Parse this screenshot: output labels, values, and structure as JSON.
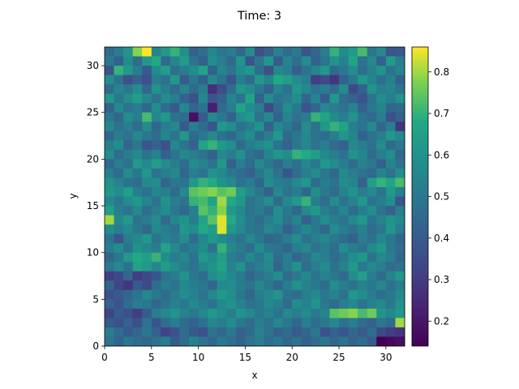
{
  "chart_data": {
    "type": "heatmap",
    "title": "Time: 3",
    "xlabel": "x",
    "ylabel": "y",
    "xlim": [
      0,
      32
    ],
    "ylim": [
      0,
      32
    ],
    "x_ticks": [
      "0",
      "5",
      "10",
      "15",
      "20",
      "25",
      "30"
    ],
    "y_ticks": [
      "0",
      "5",
      "10",
      "15",
      "20",
      "25",
      "30"
    ],
    "colormap": "viridis",
    "colorbar": {
      "min": 0.14,
      "max": 0.86,
      "ticks": [
        "0.2",
        "0.3",
        "0.4",
        "0.5",
        "0.6",
        "0.7",
        "0.8"
      ]
    },
    "grid": false,
    "legend": "none",
    "grid_size": [
      32,
      32
    ],
    "grid_note": "values row-major from y=31 (top) down to y=0, each row x=0..31",
    "values": [
      [
        0.45,
        0.52,
        0.61,
        0.78,
        0.86,
        0.55,
        0.62,
        0.7,
        0.58,
        0.42,
        0.47,
        0.55,
        0.49,
        0.52,
        0.44,
        0.58,
        0.36,
        0.42,
        0.53,
        0.46,
        0.5,
        0.38,
        0.44,
        0.52,
        0.7,
        0.58,
        0.63,
        0.72,
        0.49,
        0.56,
        0.38,
        0.4
      ],
      [
        0.5,
        0.42,
        0.58,
        0.46,
        0.62,
        0.68,
        0.45,
        0.55,
        0.63,
        0.49,
        0.42,
        0.58,
        0.52,
        0.45,
        0.61,
        0.38,
        0.5,
        0.62,
        0.4,
        0.55,
        0.47,
        0.58,
        0.42,
        0.49,
        0.6,
        0.53,
        0.66,
        0.48,
        0.56,
        0.42,
        0.63,
        0.52
      ],
      [
        0.38,
        0.7,
        0.62,
        0.52,
        0.4,
        0.58,
        0.64,
        0.47,
        0.52,
        0.58,
        0.66,
        0.42,
        0.55,
        0.49,
        0.58,
        0.62,
        0.47,
        0.36,
        0.56,
        0.52,
        0.41,
        0.48,
        0.55,
        0.62,
        0.45,
        0.5,
        0.58,
        0.46,
        0.53,
        0.6,
        0.48,
        0.55
      ],
      [
        0.58,
        0.48,
        0.36,
        0.42,
        0.36,
        0.52,
        0.48,
        0.62,
        0.4,
        0.5,
        0.42,
        0.56,
        0.48,
        0.38,
        0.52,
        0.45,
        0.62,
        0.55,
        0.68,
        0.64,
        0.58,
        0.52,
        0.3,
        0.34,
        0.28,
        0.42,
        0.5,
        0.62,
        0.55,
        0.47,
        0.53,
        0.42
      ],
      [
        0.46,
        0.55,
        0.5,
        0.58,
        0.44,
        0.6,
        0.52,
        0.45,
        0.55,
        0.45,
        0.52,
        0.26,
        0.35,
        0.46,
        0.62,
        0.58,
        0.5,
        0.42,
        0.55,
        0.48,
        0.62,
        0.56,
        0.48,
        0.52,
        0.46,
        0.58,
        0.34,
        0.42,
        0.6,
        0.52,
        0.55,
        0.48
      ],
      [
        0.62,
        0.5,
        0.58,
        0.64,
        0.56,
        0.48,
        0.58,
        0.52,
        0.42,
        0.36,
        0.56,
        0.38,
        0.42,
        0.55,
        0.48,
        0.66,
        0.42,
        0.58,
        0.48,
        0.52,
        0.58,
        0.44,
        0.55,
        0.4,
        0.62,
        0.46,
        0.42,
        0.38,
        0.48,
        0.58,
        0.52,
        0.6
      ],
      [
        0.42,
        0.56,
        0.48,
        0.52,
        0.44,
        0.58,
        0.46,
        0.4,
        0.56,
        0.44,
        0.48,
        0.22,
        0.45,
        0.52,
        0.66,
        0.58,
        0.52,
        0.34,
        0.46,
        0.58,
        0.5,
        0.38,
        0.44,
        0.56,
        0.52,
        0.48,
        0.55,
        0.42,
        0.5,
        0.55,
        0.44,
        0.45
      ],
      [
        0.5,
        0.44,
        0.58,
        0.52,
        0.72,
        0.55,
        0.62,
        0.48,
        0.46,
        0.18,
        0.4,
        0.56,
        0.5,
        0.42,
        0.58,
        0.62,
        0.48,
        0.56,
        0.42,
        0.55,
        0.48,
        0.52,
        0.7,
        0.66,
        0.58,
        0.52,
        0.6,
        0.48,
        0.45,
        0.52,
        0.36,
        0.42
      ],
      [
        0.56,
        0.48,
        0.52,
        0.46,
        0.58,
        0.44,
        0.52,
        0.56,
        0.4,
        0.52,
        0.46,
        0.38,
        0.62,
        0.58,
        0.48,
        0.52,
        0.6,
        0.42,
        0.56,
        0.5,
        0.44,
        0.58,
        0.48,
        0.62,
        0.7,
        0.66,
        0.52,
        0.48,
        0.56,
        0.44,
        0.52,
        0.28
      ],
      [
        0.44,
        0.52,
        0.48,
        0.56,
        0.5,
        0.46,
        0.55,
        0.48,
        0.62,
        0.45,
        0.5,
        0.56,
        0.48,
        0.44,
        0.52,
        0.58,
        0.46,
        0.52,
        0.62,
        0.45,
        0.5,
        0.56,
        0.48,
        0.46,
        0.52,
        0.6,
        0.55,
        0.42,
        0.48,
        0.52,
        0.62,
        0.56
      ],
      [
        0.52,
        0.58,
        0.44,
        0.5,
        0.38,
        0.42,
        0.36,
        0.56,
        0.48,
        0.42,
        0.66,
        0.7,
        0.62,
        0.58,
        0.45,
        0.52,
        0.56,
        0.6,
        0.48,
        0.42,
        0.5,
        0.56,
        0.48,
        0.52,
        0.45,
        0.42,
        0.56,
        0.52,
        0.48,
        0.58,
        0.45,
        0.5
      ],
      [
        0.58,
        0.46,
        0.52,
        0.56,
        0.48,
        0.54,
        0.42,
        0.48,
        0.56,
        0.52,
        0.48,
        0.42,
        0.56,
        0.52,
        0.6,
        0.48,
        0.44,
        0.55,
        0.62,
        0.58,
        0.7,
        0.68,
        0.64,
        0.56,
        0.52,
        0.48,
        0.6,
        0.55,
        0.46,
        0.52,
        0.58,
        0.44
      ],
      [
        0.44,
        0.52,
        0.48,
        0.62,
        0.56,
        0.64,
        0.58,
        0.52,
        0.46,
        0.58,
        0.54,
        0.48,
        0.62,
        0.42,
        0.52,
        0.46,
        0.56,
        0.5,
        0.44,
        0.52,
        0.48,
        0.56,
        0.5,
        0.62,
        0.58,
        0.52,
        0.46,
        0.54,
        0.5,
        0.42,
        0.55,
        0.48
      ],
      [
        0.52,
        0.46,
        0.58,
        0.5,
        0.62,
        0.48,
        0.52,
        0.56,
        0.44,
        0.52,
        0.48,
        0.6,
        0.56,
        0.5,
        0.46,
        0.42,
        0.5,
        0.56,
        0.48,
        0.38,
        0.46,
        0.52,
        0.58,
        0.5,
        0.44,
        0.56,
        0.52,
        0.48,
        0.45,
        0.55,
        0.48,
        0.58
      ],
      [
        0.6,
        0.54,
        0.48,
        0.46,
        0.56,
        0.58,
        0.44,
        0.5,
        0.48,
        0.62,
        0.7,
        0.68,
        0.6,
        0.56,
        0.48,
        0.52,
        0.44,
        0.58,
        0.52,
        0.5,
        0.56,
        0.62,
        0.46,
        0.52,
        0.48,
        0.58,
        0.55,
        0.42,
        0.64,
        0.7,
        0.66,
        0.72
      ],
      [
        0.62,
        0.58,
        0.64,
        0.52,
        0.48,
        0.55,
        0.52,
        0.46,
        0.56,
        0.74,
        0.76,
        0.78,
        0.74,
        0.76,
        0.64,
        0.56,
        0.5,
        0.42,
        0.56,
        0.48,
        0.52,
        0.44,
        0.58,
        0.5,
        0.46,
        0.54,
        0.6,
        0.52,
        0.56,
        0.48,
        0.62,
        0.52
      ],
      [
        0.56,
        0.5,
        0.58,
        0.62,
        0.55,
        0.48,
        0.6,
        0.52,
        0.48,
        0.7,
        0.72,
        0.66,
        0.8,
        0.68,
        0.62,
        0.48,
        0.52,
        0.58,
        0.46,
        0.56,
        0.62,
        0.7,
        0.52,
        0.46,
        0.58,
        0.48,
        0.55,
        0.62,
        0.48,
        0.52,
        0.58,
        0.38
      ],
      [
        0.64,
        0.52,
        0.48,
        0.56,
        0.46,
        0.52,
        0.58,
        0.5,
        0.44,
        0.52,
        0.74,
        0.7,
        0.78,
        0.62,
        0.56,
        0.48,
        0.52,
        0.46,
        0.58,
        0.5,
        0.44,
        0.56,
        0.62,
        0.52,
        0.48,
        0.55,
        0.46,
        0.52,
        0.58,
        0.48,
        0.42,
        0.52
      ],
      [
        0.8,
        0.56,
        0.62,
        0.48,
        0.52,
        0.58,
        0.46,
        0.55,
        0.6,
        0.52,
        0.66,
        0.74,
        0.84,
        0.68,
        0.58,
        0.5,
        0.46,
        0.52,
        0.58,
        0.48,
        0.55,
        0.42,
        0.5,
        0.58,
        0.52,
        0.48,
        0.56,
        0.62,
        0.48,
        0.54,
        0.6,
        0.56
      ],
      [
        0.58,
        0.52,
        0.56,
        0.5,
        0.44,
        0.56,
        0.52,
        0.48,
        0.62,
        0.58,
        0.68,
        0.64,
        0.84,
        0.62,
        0.56,
        0.5,
        0.48,
        0.56,
        0.52,
        0.42,
        0.48,
        0.56,
        0.5,
        0.44,
        0.58,
        0.52,
        0.48,
        0.54,
        0.46,
        0.5,
        0.62,
        0.52
      ],
      [
        0.48,
        0.38,
        0.52,
        0.56,
        0.62,
        0.48,
        0.54,
        0.5,
        0.58,
        0.46,
        0.56,
        0.62,
        0.58,
        0.52,
        0.48,
        0.56,
        0.5,
        0.44,
        0.46,
        0.52,
        0.58,
        0.48,
        0.52,
        0.56,
        0.5,
        0.46,
        0.42,
        0.52,
        0.48,
        0.56,
        0.5,
        0.44
      ],
      [
        0.52,
        0.58,
        0.48,
        0.6,
        0.56,
        0.52,
        0.66,
        0.56,
        0.48,
        0.52,
        0.58,
        0.48,
        0.7,
        0.56,
        0.52,
        0.46,
        0.58,
        0.5,
        0.48,
        0.44,
        0.52,
        0.56,
        0.48,
        0.52,
        0.46,
        0.58,
        0.52,
        0.48,
        0.56,
        0.62,
        0.5,
        0.46
      ],
      [
        0.44,
        0.5,
        0.62,
        0.68,
        0.64,
        0.7,
        0.58,
        0.52,
        0.56,
        0.48,
        0.62,
        0.58,
        0.64,
        0.52,
        0.48,
        0.56,
        0.5,
        0.58,
        0.46,
        0.52,
        0.44,
        0.48,
        0.56,
        0.52,
        0.46,
        0.5,
        0.58,
        0.62,
        0.48,
        0.56,
        0.52,
        0.44
      ],
      [
        0.5,
        0.56,
        0.48,
        0.66,
        0.62,
        0.56,
        0.64,
        0.58,
        0.52,
        0.48,
        0.56,
        0.6,
        0.66,
        0.54,
        0.6,
        0.48,
        0.52,
        0.56,
        0.44,
        0.52,
        0.6,
        0.46,
        0.52,
        0.58,
        0.48,
        0.54,
        0.62,
        0.5,
        0.56,
        0.52,
        0.46,
        0.48
      ],
      [
        0.3,
        0.34,
        0.44,
        0.3,
        0.34,
        0.38,
        0.48,
        0.52,
        0.6,
        0.5,
        0.46,
        0.58,
        0.62,
        0.56,
        0.5,
        0.44,
        0.48,
        0.52,
        0.58,
        0.46,
        0.5,
        0.56,
        0.48,
        0.54,
        0.5,
        0.46,
        0.58,
        0.64,
        0.52,
        0.46,
        0.54,
        0.62
      ],
      [
        0.44,
        0.32,
        0.28,
        0.4,
        0.34,
        0.46,
        0.52,
        0.48,
        0.56,
        0.52,
        0.5,
        0.44,
        0.56,
        0.58,
        0.52,
        0.48,
        0.56,
        0.5,
        0.44,
        0.52,
        0.6,
        0.54,
        0.5,
        0.46,
        0.58,
        0.52,
        0.48,
        0.54,
        0.5,
        0.56,
        0.48,
        0.52
      ],
      [
        0.36,
        0.4,
        0.44,
        0.48,
        0.56,
        0.5,
        0.46,
        0.52,
        0.58,
        0.54,
        0.48,
        0.56,
        0.62,
        0.58,
        0.5,
        0.44,
        0.52,
        0.56,
        0.6,
        0.48,
        0.46,
        0.52,
        0.56,
        0.5,
        0.54,
        0.48,
        0.62,
        0.58,
        0.52,
        0.46,
        0.5,
        0.56
      ],
      [
        0.42,
        0.38,
        0.46,
        0.52,
        0.5,
        0.44,
        0.48,
        0.54,
        0.5,
        0.56,
        0.52,
        0.48,
        0.56,
        0.6,
        0.54,
        0.48,
        0.5,
        0.56,
        0.52,
        0.46,
        0.58,
        0.54,
        0.6,
        0.5,
        0.46,
        0.52,
        0.56,
        0.48,
        0.54,
        0.56,
        0.5,
        0.6
      ],
      [
        0.32,
        0.4,
        0.36,
        0.3,
        0.4,
        0.52,
        0.56,
        0.6,
        0.54,
        0.5,
        0.56,
        0.62,
        0.58,
        0.52,
        0.6,
        0.56,
        0.5,
        0.54,
        0.48,
        0.56,
        0.52,
        0.58,
        0.5,
        0.54,
        0.74,
        0.76,
        0.78,
        0.72,
        0.76,
        0.6,
        0.56,
        0.62
      ],
      [
        0.4,
        0.36,
        0.42,
        0.36,
        0.48,
        0.38,
        0.46,
        0.52,
        0.46,
        0.42,
        0.48,
        0.56,
        0.52,
        0.58,
        0.5,
        0.46,
        0.52,
        0.48,
        0.56,
        0.5,
        0.44,
        0.52,
        0.46,
        0.5,
        0.56,
        0.48,
        0.52,
        0.46,
        0.42,
        0.5,
        0.46,
        0.8
      ],
      [
        0.52,
        0.46,
        0.4,
        0.44,
        0.5,
        0.42,
        0.32,
        0.38,
        0.46,
        0.4,
        0.36,
        0.48,
        0.44,
        0.5,
        0.42,
        0.46,
        0.54,
        0.48,
        0.42,
        0.46,
        0.4,
        0.44,
        0.5,
        0.36,
        0.42,
        0.38,
        0.44,
        0.4,
        0.46,
        0.34,
        0.3,
        0.28
      ],
      [
        0.48,
        0.42,
        0.5,
        0.46,
        0.44,
        0.48,
        0.52,
        0.4,
        0.46,
        0.54,
        0.48,
        0.44,
        0.5,
        0.46,
        0.42,
        0.48,
        0.52,
        0.46,
        0.5,
        0.44,
        0.48,
        0.42,
        0.46,
        0.5,
        0.44,
        0.48,
        0.42,
        0.46,
        0.4,
        0.14,
        0.16,
        0.18
      ]
    ]
  }
}
